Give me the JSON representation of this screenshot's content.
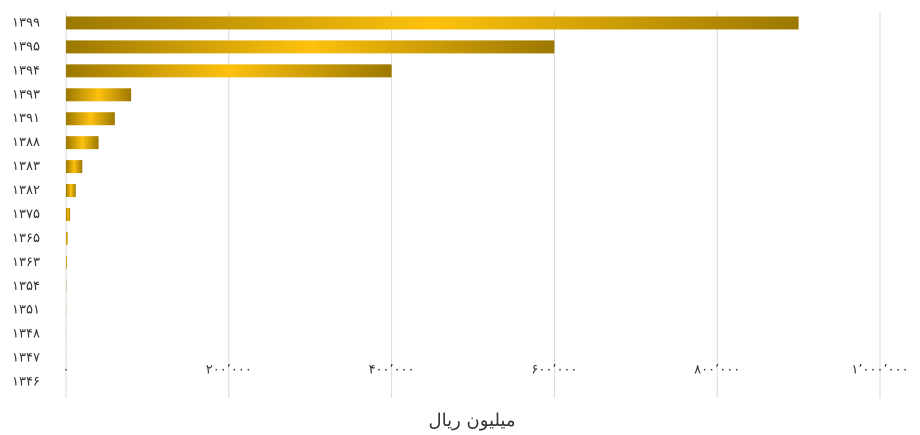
{
  "chart_data": {
    "type": "bar",
    "orientation": "horizontal",
    "x_label": "میلیون ریال",
    "categories": [
      "۱۳۹۹",
      "۱۳۹۵",
      "۱۳۹۴",
      "۱۳۹۳",
      "۱۳۹۱",
      "۱۳۸۸",
      "۱۳۸۳",
      "۱۳۸۲",
      "۱۳۷۵",
      "۱۳۶۵",
      "۱۳۶۳",
      "۱۳۵۴",
      "۱۳۵۱",
      "۱۳۴۸",
      "۱۳۴۷",
      "۱۳۴۶"
    ],
    "values": [
      900000,
      600000,
      400000,
      80000,
      60000,
      40000,
      20000,
      12000,
      5000,
      2000,
      1000,
      300,
      200,
      100,
      50,
      30
    ],
    "gradient": [
      "#9c7800",
      "#fdc10d",
      "#9c7800"
    ],
    "xlim": [
      0,
      1000000
    ],
    "xticks": [
      {
        "value": 0,
        "label": "۰"
      },
      {
        "value": 200000,
        "label": "۲۰۰٬۰۰۰"
      },
      {
        "value": 400000,
        "label": "۴۰۰٬۰۰۰"
      },
      {
        "value": 600000,
        "label": "۶۰۰٬۰۰۰"
      },
      {
        "value": 800000,
        "label": "۸۰۰٬۰۰۰"
      },
      {
        "value": 1000000,
        "label": "۱٬۰۰۰٬۰۰۰"
      }
    ],
    "grid": true
  }
}
